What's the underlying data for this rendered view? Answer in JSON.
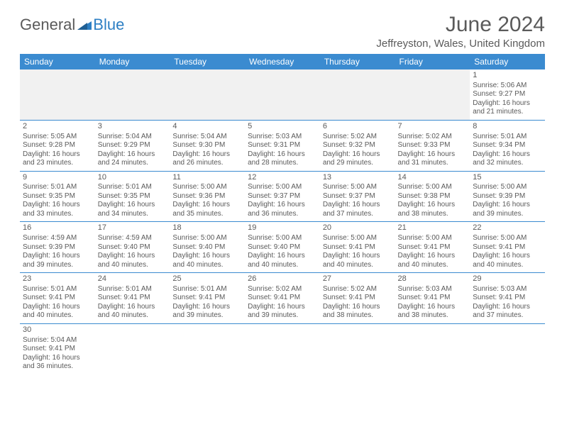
{
  "brand": {
    "part1": "General",
    "part2": "Blue",
    "flag_color": "#2d7fc4"
  },
  "title": "June 2024",
  "location": "Jeffreyston, Wales, United Kingdom",
  "colors": {
    "header_bg": "#3b8bd0",
    "header_text": "#ffffff",
    "text": "#5a5a5a",
    "rule": "#3b8bd0",
    "blank_bg": "#f1f1f1"
  },
  "weekdays": [
    "Sunday",
    "Monday",
    "Tuesday",
    "Wednesday",
    "Thursday",
    "Friday",
    "Saturday"
  ],
  "weeks": [
    [
      null,
      null,
      null,
      null,
      null,
      null,
      {
        "n": "1",
        "sr": "Sunrise: 5:06 AM",
        "ss": "Sunset: 9:27 PM",
        "dl": "Daylight: 16 hours and 21 minutes."
      }
    ],
    [
      {
        "n": "2",
        "sr": "Sunrise: 5:05 AM",
        "ss": "Sunset: 9:28 PM",
        "dl": "Daylight: 16 hours and 23 minutes."
      },
      {
        "n": "3",
        "sr": "Sunrise: 5:04 AM",
        "ss": "Sunset: 9:29 PM",
        "dl": "Daylight: 16 hours and 24 minutes."
      },
      {
        "n": "4",
        "sr": "Sunrise: 5:04 AM",
        "ss": "Sunset: 9:30 PM",
        "dl": "Daylight: 16 hours and 26 minutes."
      },
      {
        "n": "5",
        "sr": "Sunrise: 5:03 AM",
        "ss": "Sunset: 9:31 PM",
        "dl": "Daylight: 16 hours and 28 minutes."
      },
      {
        "n": "6",
        "sr": "Sunrise: 5:02 AM",
        "ss": "Sunset: 9:32 PM",
        "dl": "Daylight: 16 hours and 29 minutes."
      },
      {
        "n": "7",
        "sr": "Sunrise: 5:02 AM",
        "ss": "Sunset: 9:33 PM",
        "dl": "Daylight: 16 hours and 31 minutes."
      },
      {
        "n": "8",
        "sr": "Sunrise: 5:01 AM",
        "ss": "Sunset: 9:34 PM",
        "dl": "Daylight: 16 hours and 32 minutes."
      }
    ],
    [
      {
        "n": "9",
        "sr": "Sunrise: 5:01 AM",
        "ss": "Sunset: 9:35 PM",
        "dl": "Daylight: 16 hours and 33 minutes."
      },
      {
        "n": "10",
        "sr": "Sunrise: 5:01 AM",
        "ss": "Sunset: 9:35 PM",
        "dl": "Daylight: 16 hours and 34 minutes."
      },
      {
        "n": "11",
        "sr": "Sunrise: 5:00 AM",
        "ss": "Sunset: 9:36 PM",
        "dl": "Daylight: 16 hours and 35 minutes."
      },
      {
        "n": "12",
        "sr": "Sunrise: 5:00 AM",
        "ss": "Sunset: 9:37 PM",
        "dl": "Daylight: 16 hours and 36 minutes."
      },
      {
        "n": "13",
        "sr": "Sunrise: 5:00 AM",
        "ss": "Sunset: 9:37 PM",
        "dl": "Daylight: 16 hours and 37 minutes."
      },
      {
        "n": "14",
        "sr": "Sunrise: 5:00 AM",
        "ss": "Sunset: 9:38 PM",
        "dl": "Daylight: 16 hours and 38 minutes."
      },
      {
        "n": "15",
        "sr": "Sunrise: 5:00 AM",
        "ss": "Sunset: 9:39 PM",
        "dl": "Daylight: 16 hours and 39 minutes."
      }
    ],
    [
      {
        "n": "16",
        "sr": "Sunrise: 4:59 AM",
        "ss": "Sunset: 9:39 PM",
        "dl": "Daylight: 16 hours and 39 minutes."
      },
      {
        "n": "17",
        "sr": "Sunrise: 4:59 AM",
        "ss": "Sunset: 9:40 PM",
        "dl": "Daylight: 16 hours and 40 minutes."
      },
      {
        "n": "18",
        "sr": "Sunrise: 5:00 AM",
        "ss": "Sunset: 9:40 PM",
        "dl": "Daylight: 16 hours and 40 minutes."
      },
      {
        "n": "19",
        "sr": "Sunrise: 5:00 AM",
        "ss": "Sunset: 9:40 PM",
        "dl": "Daylight: 16 hours and 40 minutes."
      },
      {
        "n": "20",
        "sr": "Sunrise: 5:00 AM",
        "ss": "Sunset: 9:41 PM",
        "dl": "Daylight: 16 hours and 40 minutes."
      },
      {
        "n": "21",
        "sr": "Sunrise: 5:00 AM",
        "ss": "Sunset: 9:41 PM",
        "dl": "Daylight: 16 hours and 40 minutes."
      },
      {
        "n": "22",
        "sr": "Sunrise: 5:00 AM",
        "ss": "Sunset: 9:41 PM",
        "dl": "Daylight: 16 hours and 40 minutes."
      }
    ],
    [
      {
        "n": "23",
        "sr": "Sunrise: 5:01 AM",
        "ss": "Sunset: 9:41 PM",
        "dl": "Daylight: 16 hours and 40 minutes."
      },
      {
        "n": "24",
        "sr": "Sunrise: 5:01 AM",
        "ss": "Sunset: 9:41 PM",
        "dl": "Daylight: 16 hours and 40 minutes."
      },
      {
        "n": "25",
        "sr": "Sunrise: 5:01 AM",
        "ss": "Sunset: 9:41 PM",
        "dl": "Daylight: 16 hours and 39 minutes."
      },
      {
        "n": "26",
        "sr": "Sunrise: 5:02 AM",
        "ss": "Sunset: 9:41 PM",
        "dl": "Daylight: 16 hours and 39 minutes."
      },
      {
        "n": "27",
        "sr": "Sunrise: 5:02 AM",
        "ss": "Sunset: 9:41 PM",
        "dl": "Daylight: 16 hours and 38 minutes."
      },
      {
        "n": "28",
        "sr": "Sunrise: 5:03 AM",
        "ss": "Sunset: 9:41 PM",
        "dl": "Daylight: 16 hours and 38 minutes."
      },
      {
        "n": "29",
        "sr": "Sunrise: 5:03 AM",
        "ss": "Sunset: 9:41 PM",
        "dl": "Daylight: 16 hours and 37 minutes."
      }
    ],
    [
      {
        "n": "30",
        "sr": "Sunrise: 5:04 AM",
        "ss": "Sunset: 9:41 PM",
        "dl": "Daylight: 16 hours and 36 minutes."
      },
      null,
      null,
      null,
      null,
      null,
      null
    ]
  ]
}
